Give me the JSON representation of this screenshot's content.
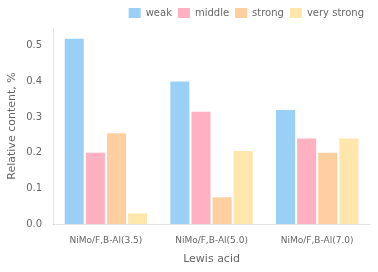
{
  "chart_data": {
    "type": "bar",
    "categories": [
      "NiMo/F,B-Al(3.5)",
      "NiMo/F,B-Al(5.0)",
      "NiMo/F,B-Al(7.0)"
    ],
    "series": [
      {
        "name": "weak",
        "values": [
          0.52,
          0.4,
          0.32
        ]
      },
      {
        "name": "middle",
        "values": [
          0.2,
          0.315,
          0.24
        ]
      },
      {
        "name": "strong",
        "values": [
          0.255,
          0.075,
          0.2
        ]
      },
      {
        "name": "very strong",
        "values": [
          0.03,
          0.205,
          0.24
        ]
      }
    ],
    "xlabel": "Lewis acid",
    "ylabel": "Relative content, %",
    "ylim": [
      0,
      0.55
    ],
    "yticks": [
      {
        "value": 0,
        "label": "0.0"
      },
      0.1,
      0.2,
      0.3,
      0.4,
      0.5
    ],
    "grid": false,
    "legend": "upper right"
  }
}
